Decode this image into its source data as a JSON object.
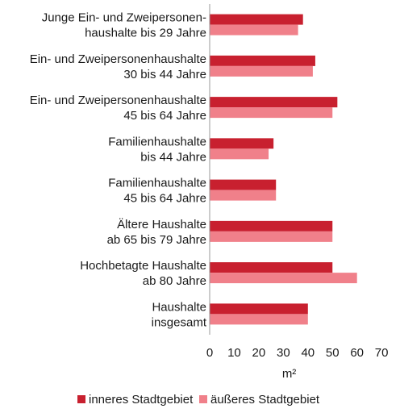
{
  "chart_data": {
    "type": "bar",
    "orientation": "horizontal",
    "categories": [
      [
        "Junge Ein- und Zweipersonen-",
        "haushalte bis 29 Jahre"
      ],
      [
        "Ein- und Zweipersonenhaushalte",
        "30 bis 44 Jahre"
      ],
      [
        "Ein- und Zweipersonenhaushalte",
        "45 bis 64 Jahre"
      ],
      [
        "Familienhaushalte",
        "bis 44 Jahre"
      ],
      [
        "Familienhaushalte",
        "45 bis 64 Jahre"
      ],
      [
        "Ältere Haushalte",
        "ab 65 bis 79 Jahre"
      ],
      [
        "Hochbetagte  Haushalte",
        "ab 80 Jahre"
      ],
      [
        "Haushalte",
        "insgesamt"
      ]
    ],
    "series": [
      {
        "name": "inneres Stadtgebiet",
        "color": "#c8202f",
        "values": [
          38,
          43,
          52,
          26,
          27,
          50,
          50,
          40
        ]
      },
      {
        "name": "äußeres Stadtgebiet",
        "color": "#f0808a",
        "values": [
          36,
          42,
          50,
          24,
          27,
          50,
          60,
          40
        ]
      }
    ],
    "xlabel": "m²",
    "xlim": [
      0,
      70
    ],
    "xticks": [
      0,
      10,
      20,
      30,
      40,
      50,
      60,
      70
    ],
    "grid": false,
    "legend_position": "bottom"
  }
}
